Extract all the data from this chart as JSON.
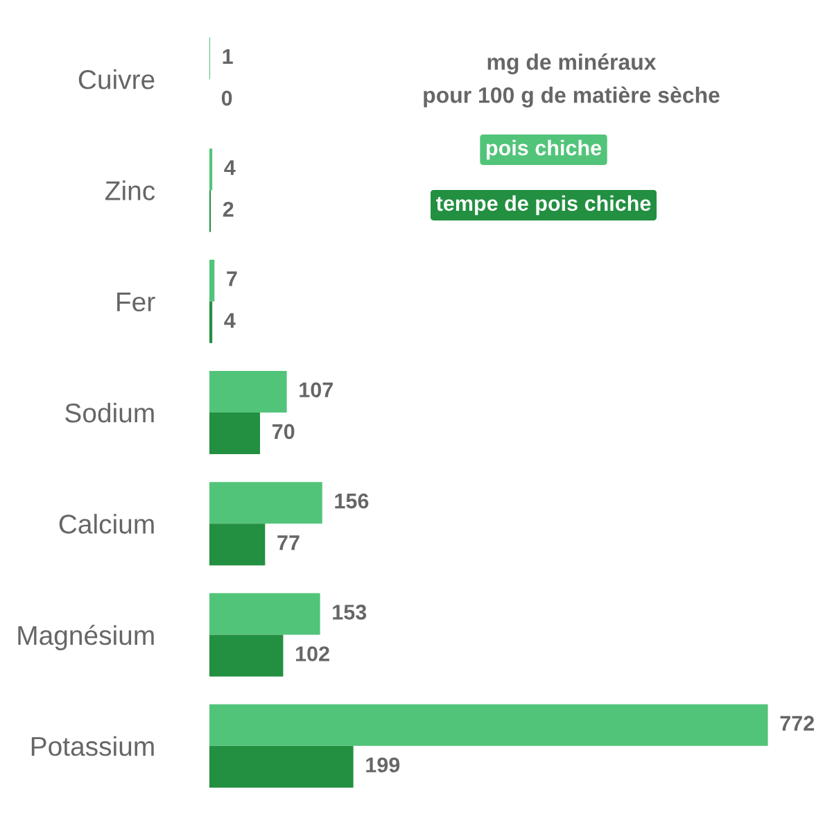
{
  "chart_data": {
    "type": "bar",
    "orientation": "horizontal",
    "title": "mg de minéraux\npour 100 g de matière sèche",
    "categories": [
      "Cuivre",
      "Zinc",
      "Fer",
      "Sodium",
      "Calcium",
      "Magnésium",
      "Potassium"
    ],
    "series": [
      {
        "name": "pois chiche",
        "color": "#52c47a",
        "values": [
          1,
          4,
          7,
          107,
          156,
          153,
          772
        ]
      },
      {
        "name": "tempe de pois chiche",
        "color": "#228f41",
        "values": [
          0,
          2,
          4,
          70,
          77,
          102,
          199
        ]
      }
    ],
    "data_labels": true,
    "legend": "top right",
    "grid": false,
    "tick_labels": "y"
  }
}
